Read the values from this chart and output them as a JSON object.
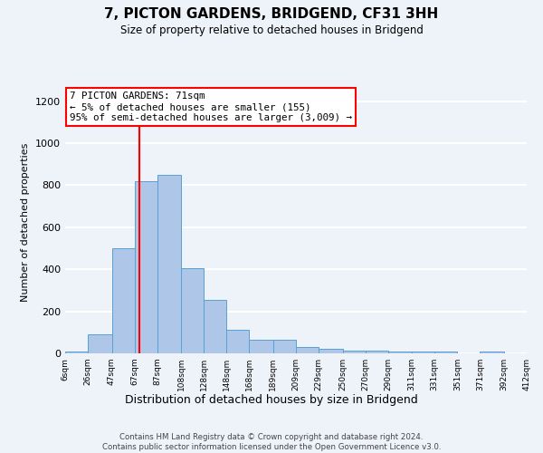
{
  "title": "7, PICTON GARDENS, BRIDGEND, CF31 3HH",
  "subtitle": "Size of property relative to detached houses in Bridgend",
  "xlabel": "Distribution of detached houses by size in Bridgend",
  "ylabel": "Number of detached properties",
  "footnote1": "Contains HM Land Registry data © Crown copyright and database right 2024.",
  "footnote2": "Contains public sector information licensed under the Open Government Licence v3.0.",
  "annotation_title": "7 PICTON GARDENS: 71sqm",
  "annotation_line2": "← 5% of detached houses are smaller (155)",
  "annotation_line3": "95% of semi-detached houses are larger (3,009) →",
  "bar_edges": [
    6,
    26,
    47,
    67,
    87,
    108,
    128,
    148,
    168,
    189,
    209,
    229,
    250,
    270,
    290,
    311,
    331,
    351,
    371,
    392,
    412
  ],
  "bar_heights": [
    10,
    90,
    500,
    820,
    850,
    405,
    255,
    110,
    65,
    65,
    30,
    20,
    12,
    12,
    10,
    10,
    10,
    0,
    10,
    0
  ],
  "bar_color": "#aec6e8",
  "bar_edge_color": "#5a9fd4",
  "vline_x": 71,
  "vline_color": "red",
  "ylim": [
    0,
    1250
  ],
  "yticks": [
    0,
    200,
    400,
    600,
    800,
    1000,
    1200
  ],
  "tick_labels": [
    "6sqm",
    "26sqm",
    "47sqm",
    "67sqm",
    "87sqm",
    "108sqm",
    "128sqm",
    "148sqm",
    "168sqm",
    "189sqm",
    "209sqm",
    "229sqm",
    "250sqm",
    "270sqm",
    "290sqm",
    "311sqm",
    "331sqm",
    "351sqm",
    "371sqm",
    "392sqm",
    "412sqm"
  ],
  "bg_color": "#eef2f9",
  "axes_bg_color": "#eef2f9",
  "grid_color": "white"
}
